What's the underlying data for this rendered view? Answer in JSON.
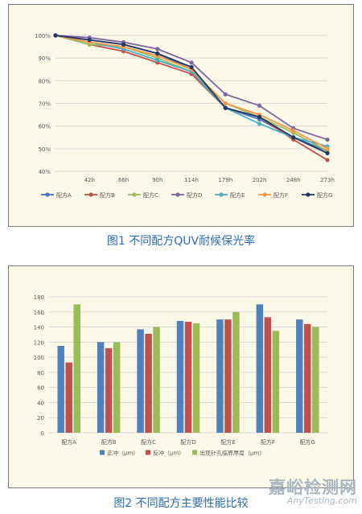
{
  "figure1": {
    "caption": "图1 不同配方QUV耐候保光率",
    "chart_data": {
      "type": "line",
      "categories": [
        "",
        "42h",
        "66h",
        "90h",
        "114h",
        "179h",
        "202h",
        "248h",
        "273h"
      ],
      "y_ticks": [
        "40%",
        "50%",
        "60%",
        "70%",
        "80%",
        "90%",
        "100%"
      ],
      "ylim": [
        40,
        100
      ],
      "grid": true,
      "legend": "bottom",
      "series": [
        {
          "name": "配方A",
          "color": "#4472c4",
          "values": [
            100,
            98,
            96,
            92,
            85,
            68,
            63,
            55,
            49
          ]
        },
        {
          "name": "配方B",
          "color": "#c0504d",
          "values": [
            100,
            96,
            93,
            88,
            83,
            68,
            64,
            54,
            45
          ]
        },
        {
          "name": "配方C",
          "color": "#9bbb59",
          "values": [
            100,
            96,
            95,
            90,
            84,
            70,
            64,
            57,
            49
          ]
        },
        {
          "name": "配方D",
          "color": "#8064a2",
          "values": [
            100,
            99,
            97,
            94,
            88,
            74,
            69,
            59,
            54
          ]
        },
        {
          "name": "配方E",
          "color": "#4bacc6",
          "values": [
            100,
            97,
            94,
            89,
            84,
            68,
            61,
            55,
            51
          ]
        },
        {
          "name": "配方F",
          "color": "#f79646",
          "values": [
            100,
            97,
            95,
            91,
            85,
            70,
            65,
            58,
            50
          ]
        },
        {
          "name": "配方G",
          "color": "#1f3864",
          "values": [
            100,
            98,
            96,
            92,
            86,
            68,
            64,
            55,
            48
          ]
        }
      ]
    }
  },
  "figure2": {
    "caption": "图2 不同配方主要性能比较",
    "chart_data": {
      "type": "bar",
      "categories": [
        "配方A",
        "配方B",
        "配方C",
        "配方D",
        "配方E",
        "配方F",
        "配方G"
      ],
      "y_ticks": [
        "0",
        "20",
        "40",
        "60",
        "80",
        "100",
        "120",
        "140",
        "160",
        "180"
      ],
      "ylim": [
        0,
        180
      ],
      "grid": true,
      "legend": "bottom",
      "series": [
        {
          "name": "正冲（μm）",
          "color": "#4f81bd",
          "values": [
            115,
            120,
            137,
            148,
            150,
            170,
            150
          ]
        },
        {
          "name": "反冲（μm）",
          "color": "#c0504d",
          "values": [
            93,
            112,
            131,
            147,
            150,
            153,
            144
          ]
        },
        {
          "name": "出现针孔临界厚度（μm）",
          "color": "#9bbb59",
          "values": [
            170,
            120,
            140,
            145,
            160,
            135,
            140
          ]
        }
      ]
    }
  },
  "watermark": {
    "cn": "嘉峪检测网",
    "en": "AnyTesting.com"
  }
}
